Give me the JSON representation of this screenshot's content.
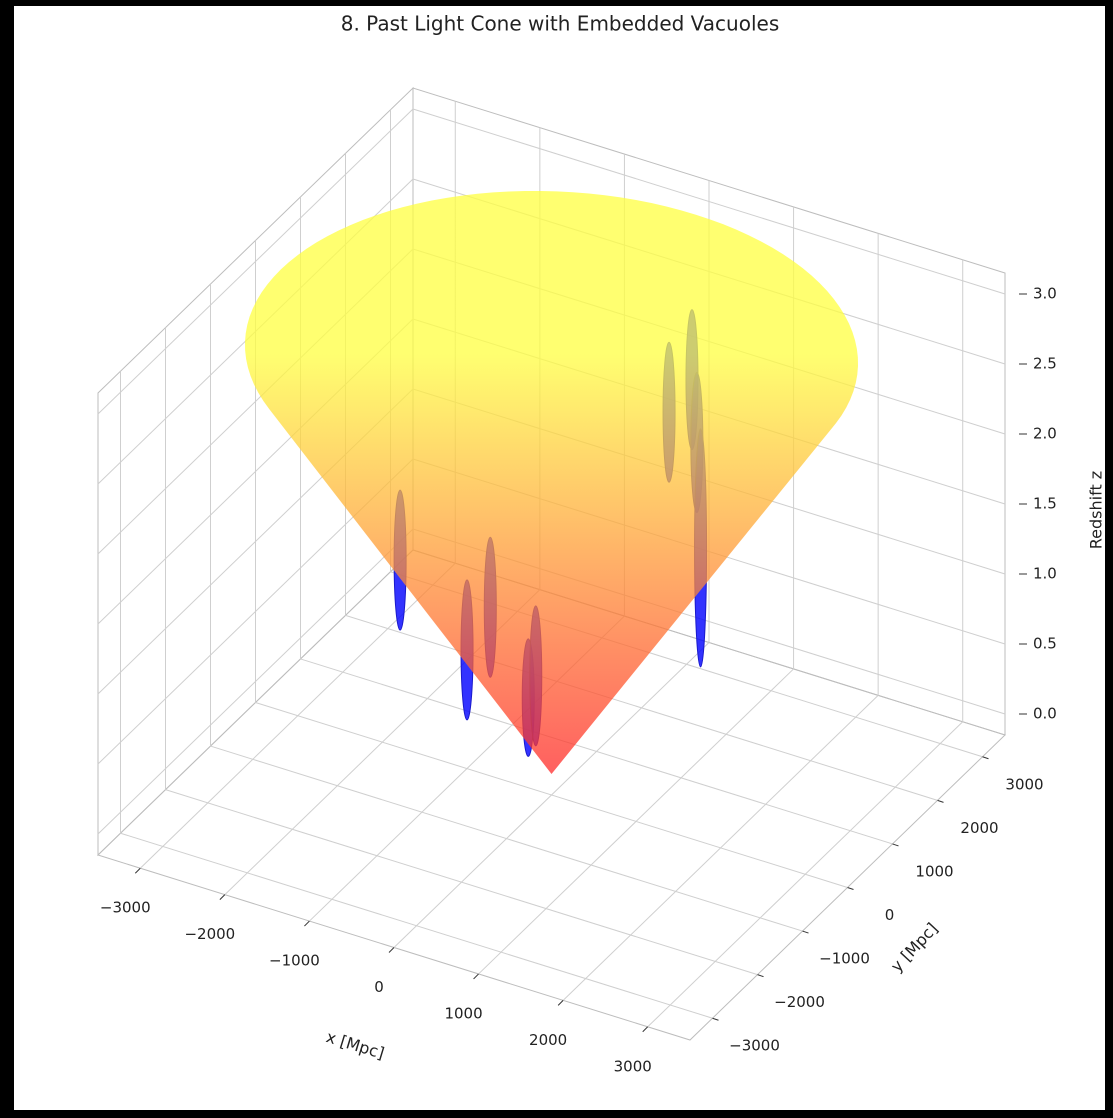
{
  "chart_data": {
    "type": "cone3d",
    "title": "8. Past Light Cone with Embedded Vacuoles",
    "xlabel": "x [Mpc]",
    "ylabel": "y [Mpc]",
    "zlabel": "Redshift z",
    "xlim": [
      -3500,
      3500
    ],
    "ylim": [
      -3500,
      3500
    ],
    "zlim": [
      -0.15,
      3.15
    ],
    "xticks": [
      {
        "value": -3000,
        "label": "−3000"
      },
      {
        "value": -2000,
        "label": "−2000"
      },
      {
        "value": -1000,
        "label": "−1000"
      },
      0,
      1000,
      2000,
      3000
    ],
    "yticks": [
      {
        "value": -3000,
        "label": "−3000"
      },
      {
        "value": -2000,
        "label": "−2000"
      },
      {
        "value": -1000,
        "label": "−1000"
      },
      0,
      1000,
      2000,
      3000
    ],
    "zticks": [
      {
        "value": 0,
        "label": "0.0"
      },
      0.5,
      {
        "value": 1,
        "label": "1.0"
      },
      1.5,
      {
        "value": 2,
        "label": "2.0"
      },
      2.5,
      {
        "value": 3,
        "label": "3.0"
      }
    ],
    "grid": true,
    "cone": {
      "z_max": 3,
      "radius_max": 3200,
      "colors": [
        "#ff2a2a",
        "#ffff40"
      ],
      "opacity": 0.75
    },
    "vacuoles": {
      "color": "#0000ff",
      "x": [
        -1790,
        -440,
        -910,
        470,
        0,
        645,
        730,
        1160,
        1390
      ],
      "y": [
        0,
        -1050,
        350,
        -1400,
        -350,
        1400,
        1750,
        1050,
        700
      ],
      "z": [
        1.19,
        1.13,
        0.91,
        1.07,
        0.81,
        2.27,
        2.41,
        2.26,
        1.66
      ],
      "dz": [
        0.5,
        0.5,
        0.5,
        0.42,
        0.5,
        0.5,
        0.5,
        0.5,
        0.85
      ]
    }
  }
}
